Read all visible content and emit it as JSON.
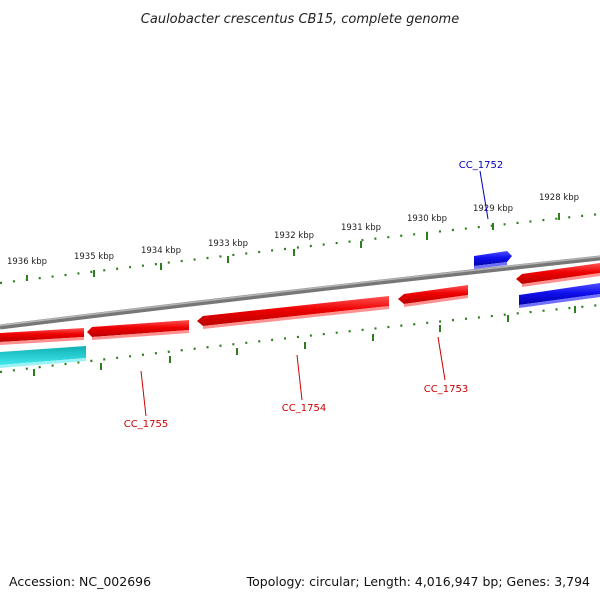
{
  "title": "Caulobacter crescentus CB15, complete genome",
  "footer": {
    "accession": "Accession: NC_002696",
    "summary": "Topology: circular; Length: 4,016,947 bp; Genes: 3,794"
  },
  "colors": {
    "backbone": "#8a8a8a",
    "ruler": "#2e7d1e",
    "reverse_gene": "#ee0000",
    "forward_gene": "#1010ee",
    "other_gene": "#10c8cc",
    "reverse_label": "#cc0000",
    "forward_label": "#0000bb"
  },
  "ticks": [
    {
      "label": "1936 kbp"
    },
    {
      "label": "1935 kbp"
    },
    {
      "label": "1934 kbp"
    },
    {
      "label": "1933 kbp"
    },
    {
      "label": "1932 kbp"
    },
    {
      "label": "1931 kbp"
    },
    {
      "label": "1930 kbp"
    },
    {
      "label": "1929 kbp"
    },
    {
      "label": "1928 kbp"
    }
  ],
  "gene_labels": [
    {
      "id": "CC_1752",
      "strand": "forward"
    },
    {
      "id": "CC_1753",
      "strand": "reverse"
    },
    {
      "id": "CC_1754",
      "strand": "reverse"
    },
    {
      "id": "CC_1755",
      "strand": "reverse"
    }
  ]
}
